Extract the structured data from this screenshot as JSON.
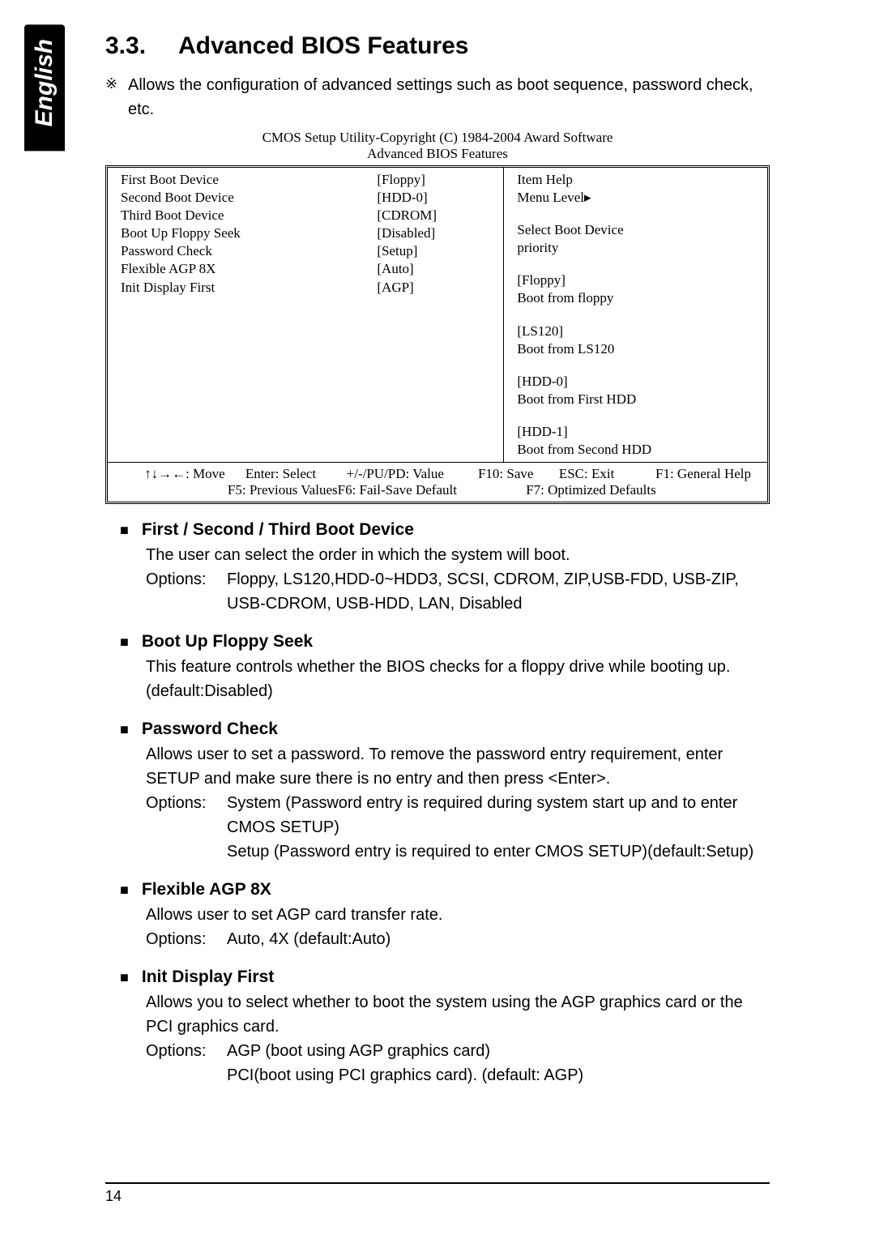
{
  "lang_tab": "English",
  "section_number": "3.3.",
  "section_title": "Advanced BIOS Features",
  "intro_bullet": "※",
  "intro_text": "Allows the configuration of advanced settings such as boot sequence, password check, etc.",
  "bios": {
    "header_line1": "CMOS Setup Utility-Copyright (C) 1984-2004 Award Software",
    "header_line2": "Advanced BIOS Features",
    "rows": [
      {
        "label": "First Boot Device",
        "value": "[Floppy]"
      },
      {
        "label": "Second Boot Device",
        "value": "[HDD-0]"
      },
      {
        "label": "Third Boot Device",
        "value": "[CDROM]"
      },
      {
        "label": "Boot Up Floppy Seek",
        "value": "[Disabled]"
      },
      {
        "label": "Password Check",
        "value": "[Setup]"
      },
      {
        "label": "Flexible AGP 8X",
        "value": "[Auto]"
      },
      {
        "label": "Init Display First",
        "value": "[AGP]"
      }
    ],
    "help": {
      "title": "Item Help",
      "menu_level": "Menu Level▸",
      "line1": "Select Boot Device",
      "line2": "priority",
      "opts": [
        {
          "tag": "[Floppy]",
          "desc": "Boot from floppy"
        },
        {
          "tag": "[LS120]",
          "desc": "Boot from LS120"
        },
        {
          "tag": "[HDD-0]",
          "desc": "Boot from First HDD"
        },
        {
          "tag": "[HDD-1]",
          "desc": "Boot from Second HDD"
        }
      ]
    },
    "footer": {
      "r1c1": "↑↓→←: Move",
      "r1c2": "Enter: Select",
      "r1c3": "+/-/PU/PD: Value",
      "r1c4": "F10: Save",
      "r1c5": "ESC: Exit",
      "r1c6": "F1: General Help",
      "r2c1": "",
      "r2c2": "F5: Previous Values",
      "r2c3": "F6: Fail-Save Default",
      "r2c4": "",
      "r2c5": "F7: Optimized Defaults",
      "r2c6": ""
    }
  },
  "items": [
    {
      "title": "First / Second / Third Boot Device",
      "body": [
        {
          "type": "text",
          "text": "The user can select the order in which the system will boot."
        },
        {
          "type": "options",
          "label": "Options:",
          "text": "Floppy, LS120,HDD-0~HDD3, SCSI, CDROM, ZIP,USB-FDD, USB-ZIP, USB-CDROM, USB-HDD, LAN, Disabled"
        }
      ]
    },
    {
      "title": "Boot Up Floppy Seek",
      "body": [
        {
          "type": "text",
          "text": "This feature controls whether the BIOS checks for a floppy drive while booting up. (default:Disabled)"
        }
      ]
    },
    {
      "title": "Password Check",
      "body": [
        {
          "type": "text",
          "text": "Allows user to set a password.  To remove the password entry requirement, enter SETUP and make sure there is no entry and then press <Enter>."
        },
        {
          "type": "options",
          "label": "Options:",
          "text": "System (Password entry is required during system start up and to enter CMOS SETUP)"
        },
        {
          "type": "options",
          "label": "",
          "text": "Setup (Password entry is required to enter CMOS SETUP)(default:Setup)"
        }
      ]
    },
    {
      "title": "Flexible AGP 8X",
      "body": [
        {
          "type": "text",
          "text": "Allows user to set AGP card transfer rate."
        },
        {
          "type": "options",
          "label": "Options:",
          "text": "Auto, 4X (default:Auto)"
        }
      ]
    },
    {
      "title": "Init Display First",
      "body": [
        {
          "type": "text",
          "text": "Allows you to select whether to boot the system using the AGP graphics card or the PCI graphics card."
        },
        {
          "type": "options",
          "label": "Options:",
          "text": "AGP (boot using AGP graphics card)"
        },
        {
          "type": "options",
          "label": "",
          "text": "PCI(boot using PCI graphics card). (default: AGP)"
        }
      ]
    }
  ],
  "page_number": "14"
}
